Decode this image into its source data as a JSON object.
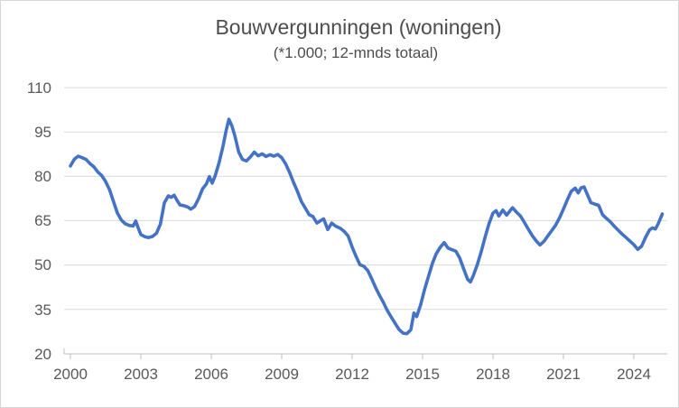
{
  "chart": {
    "title": "Bouwvergunningen (woningen)",
    "subtitle": "(*1.000; 12-mnds totaal)"
  },
  "chart_data": {
    "type": "line",
    "title": "Bouwvergunningen (woningen)",
    "subtitle": "(*1.000; 12-mnds totaal)",
    "xlabel": "",
    "ylabel": "",
    "xlim": [
      1999.75,
      2025.4
    ],
    "ylim": [
      20,
      110
    ],
    "y_tick_step": 15,
    "x_tick_step_years": 3,
    "grid": "horizontal",
    "legend": "none",
    "line_color": "#4472C4",
    "y_ticks": [
      110,
      95,
      80,
      65,
      50,
      35,
      20
    ],
    "x_ticks": [
      2000,
      2003,
      2006,
      2009,
      2012,
      2015,
      2018,
      2021,
      2024
    ],
    "x": [
      2000.0,
      2000.17,
      2000.33,
      2000.5,
      2000.67,
      2000.83,
      2001.0,
      2001.17,
      2001.33,
      2001.5,
      2001.67,
      2001.83,
      2002.0,
      2002.17,
      2002.33,
      2002.5,
      2002.67,
      2002.78,
      2002.9,
      2003.0,
      2003.17,
      2003.33,
      2003.5,
      2003.67,
      2003.83,
      2004.0,
      2004.17,
      2004.29,
      2004.42,
      2004.54,
      2004.67,
      2004.83,
      2005.0,
      2005.13,
      2005.29,
      2005.46,
      2005.63,
      2005.79,
      2005.92,
      2006.04,
      2006.17,
      2006.33,
      2006.5,
      2006.63,
      2006.75,
      2006.88,
      2007.0,
      2007.17,
      2007.33,
      2007.5,
      2007.67,
      2007.83,
      2008.0,
      2008.17,
      2008.33,
      2008.5,
      2008.67,
      2008.83,
      2009.0,
      2009.17,
      2009.33,
      2009.5,
      2009.67,
      2009.83,
      2010.0,
      2010.17,
      2010.33,
      2010.5,
      2010.67,
      2010.79,
      2010.96,
      2011.13,
      2011.29,
      2011.5,
      2011.67,
      2011.83,
      2012.0,
      2012.17,
      2012.33,
      2012.5,
      2012.67,
      2012.83,
      2013.0,
      2013.17,
      2013.33,
      2013.5,
      2013.67,
      2013.83,
      2014.0,
      2014.17,
      2014.33,
      2014.5,
      2014.63,
      2014.75,
      2014.92,
      2015.08,
      2015.25,
      2015.42,
      2015.58,
      2015.75,
      2015.92,
      2016.08,
      2016.25,
      2016.42,
      2016.58,
      2016.75,
      2016.92,
      2017.04,
      2017.17,
      2017.33,
      2017.5,
      2017.67,
      2017.83,
      2018.0,
      2018.13,
      2018.25,
      2018.42,
      2018.58,
      2018.83,
      2019.0,
      2019.17,
      2019.33,
      2019.5,
      2019.67,
      2019.83,
      2020.0,
      2020.17,
      2020.33,
      2020.5,
      2020.67,
      2020.83,
      2021.0,
      2021.17,
      2021.33,
      2021.5,
      2021.63,
      2021.75,
      2021.88,
      2022.0,
      2022.17,
      2022.33,
      2022.5,
      2022.67,
      2022.83,
      2023.0,
      2023.17,
      2023.33,
      2023.5,
      2023.67,
      2023.83,
      2024.0,
      2024.17,
      2024.33,
      2024.5,
      2024.67,
      2024.79,
      2024.92,
      2025.04,
      2025.21
    ],
    "values": [
      83.5,
      85.8,
      86.8,
      86.3,
      85.7,
      84.3,
      83.2,
      81.4,
      80.3,
      78.2,
      75.4,
      71.6,
      67.6,
      65.2,
      64.0,
      63.4,
      63.2,
      64.9,
      62.3,
      60.3,
      59.6,
      59.3,
      59.7,
      60.8,
      63.8,
      71.0,
      73.4,
      72.9,
      73.6,
      71.9,
      70.3,
      70.1,
      69.6,
      68.9,
      69.8,
      72.5,
      75.8,
      77.4,
      79.9,
      77.7,
      80.3,
      84.6,
      90.2,
      95.4,
      99.3,
      97.0,
      93.8,
      88.2,
      85.7,
      85.2,
      86.6,
      88.2,
      86.9,
      87.6,
      86.7,
      87.3,
      86.8,
      87.4,
      86.3,
      84.2,
      81.4,
      78.0,
      74.9,
      71.6,
      69.3,
      67.0,
      66.4,
      64.2,
      65.1,
      65.6,
      62.0,
      64.2,
      63.2,
      62.4,
      61.3,
      59.8,
      56.1,
      52.9,
      50.1,
      49.6,
      48.1,
      45.4,
      42.4,
      39.7,
      37.4,
      34.6,
      32.4,
      30.3,
      28.2,
      27.0,
      26.8,
      28.1,
      33.8,
      32.6,
      36.6,
      41.6,
      46.1,
      50.6,
      53.8,
      56.0,
      57.6,
      55.8,
      55.2,
      54.7,
      52.4,
      48.7,
      45.2,
      44.3,
      46.6,
      50.1,
      54.6,
      59.6,
      64.0,
      67.6,
      68.4,
      66.6,
      68.6,
      66.9,
      69.4,
      67.9,
      66.6,
      64.5,
      62.2,
      60.0,
      58.3,
      56.8,
      58.0,
      59.8,
      61.6,
      63.5,
      65.9,
      68.9,
      72.1,
      74.9,
      76.0,
      74.4,
      76.1,
      76.4,
      74.2,
      71.1,
      70.6,
      70.2,
      67.0,
      65.8,
      64.6,
      63.1,
      61.8,
      60.5,
      59.3,
      58.1,
      56.9,
      55.3,
      56.4,
      59.4,
      61.9,
      62.6,
      62.2,
      64.0,
      67.3
    ]
  }
}
